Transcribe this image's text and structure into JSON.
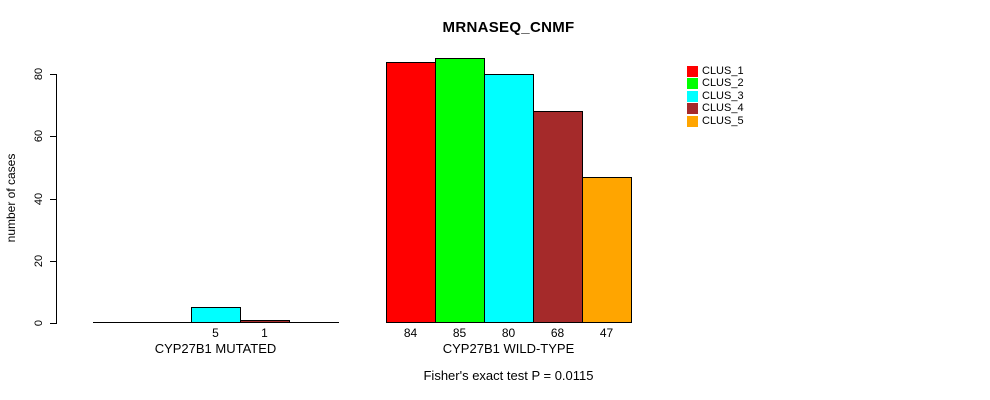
{
  "chart_data": {
    "type": "bar",
    "title": "MRNASEQ_CNMF",
    "ylabel": "number of cases",
    "xlabel": "",
    "ylim": [
      0,
      80
    ],
    "yticks": [
      0,
      20,
      40,
      60,
      80
    ],
    "grid": false,
    "categories": [
      "CYP27B1 MUTATED",
      "CYP27B1 WILD-TYPE"
    ],
    "series": [
      {
        "name": "CLUS_1",
        "color": "#FF0000",
        "values": [
          0,
          84
        ]
      },
      {
        "name": "CLUS_2",
        "color": "#00FF00",
        "values": [
          0,
          85
        ]
      },
      {
        "name": "CLUS_3",
        "color": "#00FFFF",
        "values": [
          5,
          80
        ]
      },
      {
        "name": "CLUS_4",
        "color": "#A52A2A",
        "values": [
          1,
          68
        ]
      },
      {
        "name": "CLUS_5",
        "color": "#FFA500",
        "values": [
          0,
          47
        ]
      }
    ],
    "bar_value_labels": [
      [
        "",
        "",
        "5",
        "1",
        ""
      ],
      [
        "84",
        "85",
        "80",
        "68",
        "47"
      ]
    ],
    "legend": {
      "position": "top-right",
      "entries": [
        "CLUS_1",
        "CLUS_2",
        "CLUS_3",
        "CLUS_4",
        "CLUS_5"
      ]
    },
    "annotation": "Fisher's exact test P = 0.0115"
  }
}
